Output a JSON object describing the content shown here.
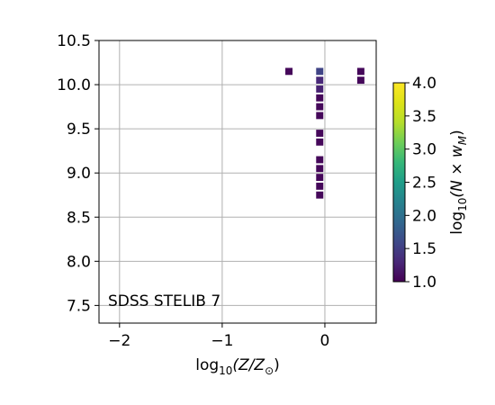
{
  "chart_data": {
    "type": "heatmap",
    "title": "",
    "annotation": "SDSS STELIB 7",
    "xlabel": {
      "base": "log",
      "sub": "10",
      "body": "(Z/Z",
      "tail": ")"
    },
    "ylabel": "",
    "colorbar_label": {
      "base": "log",
      "sub": "10",
      "body": "(N × w",
      "msub": "M",
      "tail": ")"
    },
    "xlim": [
      -2.2,
      0.5
    ],
    "ylim": [
      7.3,
      10.5
    ],
    "xticks": [
      -2,
      -1,
      0
    ],
    "xtick_labels": [
      "−2",
      "−1",
      "0"
    ],
    "yticks": [
      7.5,
      8.0,
      8.5,
      9.0,
      9.5,
      10.0,
      10.5
    ],
    "ytick_labels": [
      "7.5",
      "8.0",
      "8.5",
      "9.0",
      "9.5",
      "10.0",
      "10.5"
    ],
    "color_range": [
      1.0,
      4.0
    ],
    "cbar_ticks": [
      1.0,
      1.5,
      2.0,
      2.5,
      3.0,
      3.5,
      4.0
    ],
    "cbar_tick_labels": [
      "1.0",
      "1.5",
      "2.0",
      "2.5",
      "3.0",
      "3.5",
      "4.0"
    ],
    "colormap": "viridis",
    "grid": true,
    "cell_width": 0.07,
    "cell_height": 0.08,
    "points": [
      {
        "x": -0.35,
        "y": 10.15,
        "v": 1.05
      },
      {
        "x": -0.05,
        "y": 10.15,
        "v": 1.55
      },
      {
        "x": -0.05,
        "y": 10.05,
        "v": 1.3
      },
      {
        "x": -0.05,
        "y": 9.95,
        "v": 1.25
      },
      {
        "x": -0.05,
        "y": 9.85,
        "v": 1.05
      },
      {
        "x": -0.05,
        "y": 9.75,
        "v": 1.05
      },
      {
        "x": -0.05,
        "y": 9.65,
        "v": 1.05
      },
      {
        "x": -0.05,
        "y": 9.45,
        "v": 1.05
      },
      {
        "x": -0.05,
        "y": 9.35,
        "v": 1.05
      },
      {
        "x": -0.05,
        "y": 9.15,
        "v": 1.05
      },
      {
        "x": -0.05,
        "y": 9.05,
        "v": 1.05
      },
      {
        "x": -0.05,
        "y": 8.95,
        "v": 1.05
      },
      {
        "x": -0.05,
        "y": 8.85,
        "v": 1.05
      },
      {
        "x": -0.05,
        "y": 8.75,
        "v": 1.05
      },
      {
        "x": 0.35,
        "y": 10.15,
        "v": 1.05
      },
      {
        "x": 0.35,
        "y": 10.05,
        "v": 1.05
      }
    ]
  }
}
